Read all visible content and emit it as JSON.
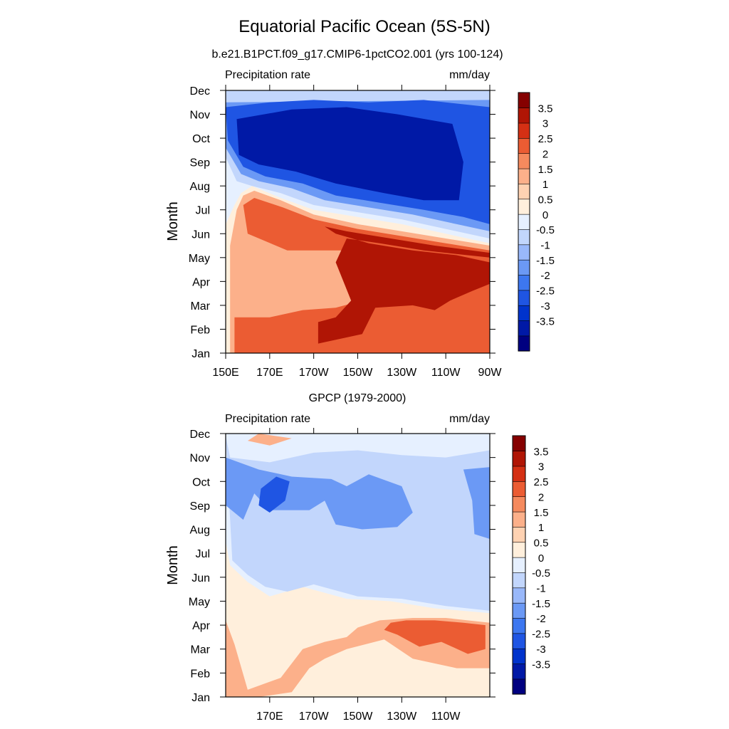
{
  "title": "Equatorial Pacific Ocean (5S-5N)",
  "colors": [
    "#000080",
    "#0019A6",
    "#0033CC",
    "#1F55E3",
    "#3D77F0",
    "#6B99F5",
    "#99B8FA",
    "#C2D6FC",
    "#E6F0FF",
    "#FFEFDC",
    "#FFD2B2",
    "#FCB08A",
    "#F58A5E",
    "#EB5C33",
    "#D43014",
    "#B01505",
    "#850000"
  ],
  "chart_data": [
    {
      "type": "heatmap",
      "title": "b.e21.B1PCT.f09_g17.CMIP6-1pctCO2.001 (yrs 100-124)",
      "left_label": "Precipitation rate",
      "right_label": "mm/day",
      "ylabel": "Month",
      "x_tick_labels": [
        "150E",
        "170E",
        "170W",
        "150W",
        "130W",
        "110W",
        "90W"
      ],
      "x_tick_values": [
        150,
        170,
        190,
        210,
        230,
        250,
        270
      ],
      "xlim": [
        150,
        270
      ],
      "y_tick_labels": [
        "Jan",
        "Feb",
        "Mar",
        "Apr",
        "May",
        "Jun",
        "Jul",
        "Aug",
        "Sep",
        "Oct",
        "Nov",
        "Dec"
      ],
      "ylim": [
        1,
        12
      ],
      "colorbar_levels": [
        -4,
        -3.5,
        -3,
        -2.5,
        -2,
        -1.5,
        -1,
        -0.5,
        0,
        0.5,
        1,
        1.5,
        2,
        2.5,
        3,
        3.5,
        4
      ],
      "colorbar_labels": [
        "3.5",
        "3",
        "2.5",
        "2",
        "1.5",
        "1",
        "0.5",
        "0",
        "-0.5",
        "-1",
        "-1.5",
        "-2",
        "-2.5",
        "-3",
        "-3.5"
      ],
      "contour_bands": [
        {
          "z": 0.5,
          "points": [
            [
              150,
              1
            ],
            [
              150,
              6.4
            ],
            [
              154,
              7.2
            ],
            [
              157,
              7.7
            ],
            [
              162,
              8.0
            ],
            [
              175,
              7.5
            ],
            [
              190,
              7.0
            ],
            [
              210,
              6.7
            ],
            [
              230,
              6.4
            ],
            [
              250,
              6.0
            ],
            [
              270,
              5.6
            ],
            [
              270,
              1
            ]
          ]
        },
        {
          "z": 1.5,
          "points": [
            [
              152,
              1
            ],
            [
              152,
              5.5
            ],
            [
              155,
              7.0
            ],
            [
              158,
              7.6
            ],
            [
              163,
              7.8
            ],
            [
              175,
              7.4
            ],
            [
              190,
              6.8
            ],
            [
              210,
              6.4
            ],
            [
              230,
              6.1
            ],
            [
              250,
              5.8
            ],
            [
              270,
              5.5
            ],
            [
              270,
              1
            ]
          ]
        },
        {
          "z": 2.5,
          "points": [
            [
              154,
              1
            ],
            [
              154,
              2.5
            ],
            [
              170,
              2.5
            ],
            [
              185,
              2.8
            ],
            [
              200,
              2.9
            ],
            [
              212,
              3.2
            ],
            [
              215,
              4.8
            ],
            [
              210,
              5.3
            ],
            [
              195,
              5.3
            ],
            [
              178,
              5.3
            ],
            [
              160,
              6.0
            ],
            [
              158,
              7.2
            ],
            [
              163,
              7.5
            ],
            [
              176,
              7.1
            ],
            [
              190,
              6.6
            ],
            [
              210,
              6.2
            ],
            [
              230,
              5.9
            ],
            [
              250,
              5.6
            ],
            [
              270,
              5.3
            ],
            [
              270,
              1
            ]
          ]
        },
        {
          "z": 3.5,
          "points": [
            [
              192,
              1
            ],
            [
              192,
              1.4
            ],
            [
              212,
              1.8
            ],
            [
              218,
              2.9
            ],
            [
              235,
              3.0
            ],
            [
              245,
              2.8
            ],
            [
              252,
              3.2
            ],
            [
              262,
              3.6
            ],
            [
              270,
              3.9
            ],
            [
              270,
              4.8
            ],
            [
              255,
              5.1
            ],
            [
              235,
              5.3
            ],
            [
              215,
              5.6
            ],
            [
              200,
              6.0
            ],
            [
              195,
              6.3
            ],
            [
              205,
              6.1
            ],
            [
              225,
              5.8
            ],
            [
              245,
              5.5
            ],
            [
              270,
              5.2
            ],
            [
              270,
              5.0
            ],
            [
              260,
              5.1
            ],
            [
              240,
              5.3
            ],
            [
              220,
              5.6
            ],
            [
              205,
              5.8
            ],
            [
              200,
              4.8
            ],
            [
              207,
              3.2
            ],
            [
              200,
              2.5
            ],
            [
              192,
              2.3
            ]
          ]
        },
        {
          "z": -0.5,
          "points": [
            [
              150,
              12
            ],
            [
              150,
              9.2
            ],
            [
              155,
              8.2
            ],
            [
              162,
              8.0
            ],
            [
              175,
              7.7
            ],
            [
              190,
              7.2
            ],
            [
              210,
              6.9
            ],
            [
              230,
              6.6
            ],
            [
              250,
              6.2
            ],
            [
              270,
              5.8
            ],
            [
              270,
              12
            ]
          ]
        },
        {
          "z": -1.5,
          "points": [
            [
              150,
              11.5
            ],
            [
              150,
              9.6
            ],
            [
              157,
              8.5
            ],
            [
              165,
              8.2
            ],
            [
              180,
              7.9
            ],
            [
              195,
              7.4
            ],
            [
              215,
              7.1
            ],
            [
              235,
              6.8
            ],
            [
              255,
              6.4
            ],
            [
              270,
              6.1
            ],
            [
              270,
              11.6
            ]
          ]
        },
        {
          "z": -2.5,
          "points": [
            [
              150,
              11.3
            ],
            [
              151,
              9.9
            ],
            [
              158,
              8.8
            ],
            [
              168,
              8.4
            ],
            [
              185,
              8.1
            ],
            [
              200,
              7.6
            ],
            [
              220,
              7.3
            ],
            [
              240,
              7.0
            ],
            [
              258,
              6.7
            ],
            [
              270,
              6.4
            ],
            [
              270,
              11.3
            ],
            [
              240,
              11.6
            ],
            [
              215,
              11.5
            ],
            [
              190,
              11.6
            ],
            [
              170,
              11.5
            ]
          ]
        },
        {
          "z": -3.5,
          "points": [
            [
              155,
              10.8
            ],
            [
              156,
              9.3
            ],
            [
              165,
              8.9
            ],
            [
              182,
              8.6
            ],
            [
              200,
              8.1
            ],
            [
              222,
              7.7
            ],
            [
              240,
              7.4
            ],
            [
              256,
              7.4
            ],
            [
              258,
              9.0
            ],
            [
              253,
              10.6
            ],
            [
              228,
              11.0
            ],
            [
              205,
              11.3
            ],
            [
              180,
              11.2
            ]
          ]
        }
      ]
    },
    {
      "type": "heatmap",
      "title": "GPCP (1979-2000)",
      "left_label": "Precipitation rate",
      "right_label": "mm/day",
      "ylabel": "Month",
      "x_tick_labels": [
        "170E",
        "170W",
        "150W",
        "130W",
        "110W"
      ],
      "x_tick_values": [
        170,
        190,
        210,
        230,
        250
      ],
      "xlim": [
        150,
        270
      ],
      "y_tick_labels": [
        "Jan",
        "Feb",
        "Mar",
        "Apr",
        "May",
        "Jun",
        "Jul",
        "Aug",
        "Sep",
        "Oct",
        "Nov",
        "Dec"
      ],
      "ylim": [
        1,
        12
      ],
      "colorbar_levels": [
        -4,
        -3.5,
        -3,
        -2.5,
        -2,
        -1.5,
        -1,
        -0.5,
        0,
        0.5,
        1,
        1.5,
        2,
        2.5,
        3,
        3.5,
        4
      ],
      "colorbar_labels": [
        "3.5",
        "3",
        "2.5",
        "2",
        "1.5",
        "1",
        "0.5",
        "0",
        "-0.5",
        "-1",
        "-1.5",
        "-2",
        "-2.5",
        "-3",
        "-3.5"
      ],
      "contour_bands": [
        {
          "z": 0.5,
          "points": [
            [
              150,
              1
            ],
            [
              150,
              7.5
            ],
            [
              152,
              6.5
            ],
            [
              160,
              5.8
            ],
            [
              170,
              5.2
            ],
            [
              185,
              5.6
            ],
            [
              205,
              5.1
            ],
            [
              225,
              5.0
            ],
            [
              245,
              4.7
            ],
            [
              270,
              4.5
            ],
            [
              270,
              1
            ]
          ]
        },
        {
          "z": 1.5,
          "points": [
            [
              150,
              1
            ],
            [
              150,
              4.2
            ],
            [
              154,
              3.2
            ],
            [
              160,
              1.3
            ],
            [
              175,
              1.8
            ],
            [
              185,
              3.0
            ],
            [
              195,
              3.3
            ],
            [
              205,
              3.5
            ],
            [
              210,
              3.9
            ],
            [
              220,
              4.2
            ],
            [
              235,
              4.3
            ],
            [
              250,
              4.3
            ],
            [
              270,
              4.1
            ],
            [
              270,
              2.2
            ],
            [
              255,
              2.2
            ],
            [
              235,
              2.6
            ],
            [
              222,
              3.4
            ],
            [
              205,
              3.0
            ],
            [
              195,
              2.6
            ],
            [
              188,
              2.2
            ],
            [
              180,
              1.2
            ],
            [
              165,
              1.0
            ]
          ]
        },
        {
          "z": 2.5,
          "points": [
            [
              222,
              3.8
            ],
            [
              228,
              3.6
            ],
            [
              238,
              3.1
            ],
            [
              248,
              3.3
            ],
            [
              260,
              2.8
            ],
            [
              268,
              3.0
            ],
            [
              268,
              4.0
            ],
            [
              258,
              4.1
            ],
            [
              245,
              4.2
            ],
            [
              232,
              4.2
            ],
            [
              225,
              4.1
            ]
          ]
        },
        {
          "z": 1.5,
          "points": [
            [
              160,
              11.7
            ],
            [
              170,
              11.5
            ],
            [
              180,
              11.8
            ],
            [
              165,
              12
            ]
          ]
        },
        {
          "z": -0.5,
          "points": [
            [
              150,
              11.9
            ],
            [
              152,
              11.0
            ],
            [
              170,
              10.8
            ],
            [
              190,
              11.2
            ],
            [
              210,
              11.3
            ],
            [
              230,
              11.1
            ],
            [
              250,
              11.0
            ],
            [
              270,
              11.3
            ],
            [
              270,
              4.6
            ],
            [
              250,
              4.8
            ],
            [
              230,
              5.1
            ],
            [
              210,
              5.2
            ],
            [
              190,
              5.7
            ],
            [
              178,
              5.4
            ],
            [
              168,
              5.6
            ],
            [
              160,
              6.1
            ],
            [
              153,
              6.7
            ]
          ]
        },
        {
          "z": -1.5,
          "points": [
            [
              150,
              11.0
            ],
            [
              150,
              9.0
            ],
            [
              158,
              8.4
            ],
            [
              163,
              9.5
            ],
            [
              170,
              8.8
            ],
            [
              188,
              8.8
            ],
            [
              195,
              9.2
            ],
            [
              200,
              8.2
            ],
            [
              212,
              8.0
            ],
            [
              228,
              8.1
            ],
            [
              235,
              8.7
            ],
            [
              230,
              9.8
            ],
            [
              215,
              10.3
            ],
            [
              205,
              9.8
            ],
            [
              198,
              10.1
            ],
            [
              180,
              10.2
            ],
            [
              165,
              10.5
            ]
          ]
        },
        {
          "z": -1.5,
          "points": [
            [
              258,
              10.5
            ],
            [
              262,
              9.2
            ],
            [
              263,
              7.8
            ],
            [
              270,
              7.6
            ],
            [
              270,
              10.6
            ]
          ]
        },
        {
          "z": -2.5,
          "points": [
            [
              165,
              9.0
            ],
            [
              170,
              8.7
            ],
            [
              177,
              9.2
            ],
            [
              179,
              10.0
            ],
            [
              173,
              10.2
            ],
            [
              166,
              9.7
            ]
          ]
        }
      ]
    }
  ]
}
